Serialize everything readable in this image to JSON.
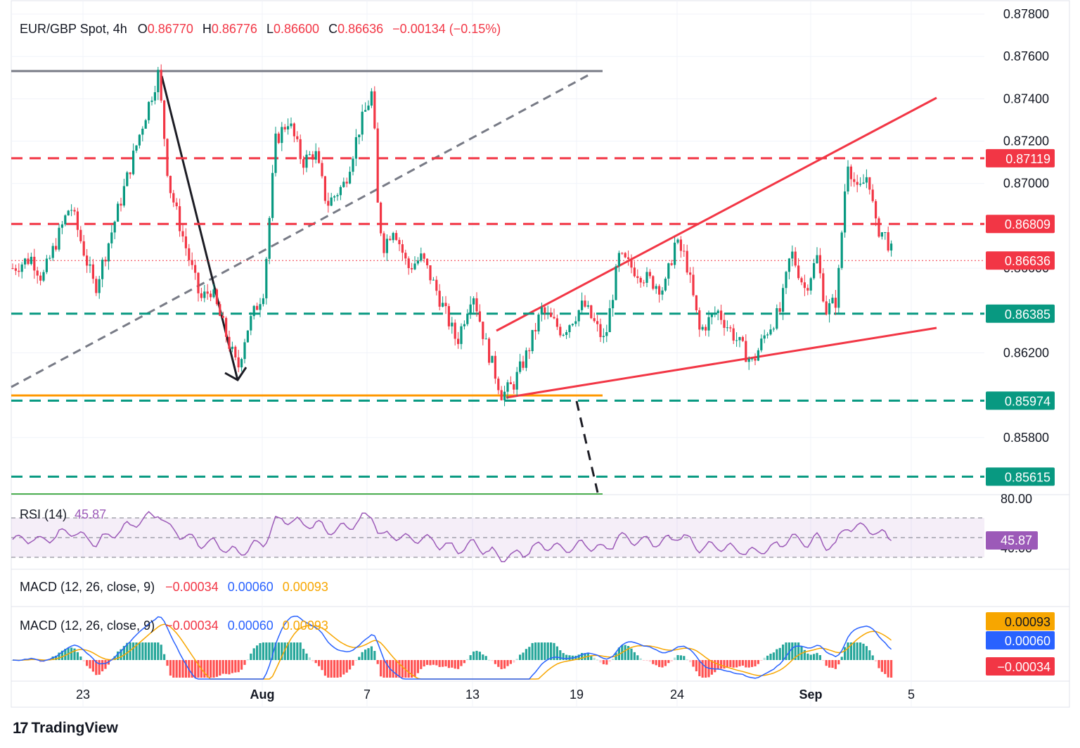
{
  "header": {
    "symbol": "EUR/GBP Spot, 4h",
    "o_label": "O",
    "o_value": "0.86770",
    "h_label": "H",
    "h_value": "0.86776",
    "l_label": "L",
    "l_value": "0.86600",
    "c_label": "C",
    "c_value": "0.86636",
    "change": "−0.00134 (−0.15%)"
  },
  "rsi_legend": {
    "label": "RSI (14)",
    "value": "45.87"
  },
  "macd_legend": {
    "label": "MACD (12, 26, close, 9)",
    "hist": "−0.00034",
    "macd": "0.00060",
    "signal": "0.00093"
  },
  "brand": {
    "name": "TradingView"
  },
  "colors": {
    "up": "#089981",
    "down": "#f23645",
    "rsi": "#9c5ab8",
    "macd": "#2962ff",
    "signal": "#f7a600",
    "orange_line": "#ff9800",
    "green_line": "#4caf50",
    "gray_line": "#787b86"
  },
  "chart_data": [
    {
      "type": "candlestick",
      "title": "EUR/GBP Spot, 4h",
      "y_ticks": [
        "0.87800",
        "0.87600",
        "0.87400",
        "0.87200",
        "0.87000",
        "0.86800",
        "0.86600",
        "0.86200",
        "0.85800"
      ],
      "x_ticks": [
        "23",
        "Aug",
        "7",
        "13",
        "19",
        "24",
        "Sep",
        "5"
      ],
      "ylim": [
        0.8553,
        0.8784
      ],
      "price_labels": [
        {
          "text": "0.87119",
          "value": 0.87119,
          "color": "#f23645"
        },
        {
          "text": "0.86809",
          "value": 0.86809,
          "color": "#f23645"
        },
        {
          "text": "0.86636",
          "value": 0.86636,
          "color": "#f23645"
        },
        {
          "text": "0.86385",
          "value": 0.86385,
          "color": "#089981"
        },
        {
          "text": "0.85974",
          "value": 0.85974,
          "color": "#089981"
        },
        {
          "text": "0.85615",
          "value": 0.85615,
          "color": "#089981"
        }
      ],
      "resistance_levels": [
        0.87119,
        0.86809
      ],
      "support_levels": [
        0.86385,
        0.85974,
        0.85615
      ],
      "last_price": 0.86636,
      "key_points": [
        {
          "x": "Jul 19",
          "close": 0.866
        },
        {
          "x": "Jul 26",
          "high": 0.8753
        },
        {
          "x": "Jul 31",
          "low": 0.861
        },
        {
          "x": "Aug 2",
          "high": 0.873
        },
        {
          "x": "Aug 7",
          "high": 0.8744
        },
        {
          "x": "Aug 7",
          "low": 0.8665
        },
        {
          "x": "Aug 13",
          "low": 0.8623
        },
        {
          "x": "Aug 15",
          "low": 0.8597
        },
        {
          "x": "Aug 21",
          "high": 0.8665
        },
        {
          "x": "Aug 23",
          "high": 0.8672
        },
        {
          "x": "Aug 27",
          "low": 0.8612
        },
        {
          "x": "Aug 30",
          "high": 0.8668
        },
        {
          "x": "Sep 2",
          "low": 0.864
        },
        {
          "x": "Sep 3",
          "high": 0.8713
        },
        {
          "x": "Sep 4",
          "close": 0.86636
        }
      ]
    },
    {
      "type": "line",
      "title": "RSI (14)",
      "y_ticks": [
        "80.00",
        "40.00"
      ],
      "value": 45.87,
      "bands": [
        70,
        50,
        30
      ]
    },
    {
      "type": "bar",
      "title": "MACD (12, 26, close, 9)",
      "histogram": -0.00034,
      "macd": 0.0006,
      "signal": 0.00093,
      "labels": [
        {
          "text": "0.00093",
          "color": "#f7a600"
        },
        {
          "text": "0.00060",
          "color": "#2962ff"
        },
        {
          "text": "−0.00034",
          "color": "#f23645"
        }
      ]
    }
  ]
}
